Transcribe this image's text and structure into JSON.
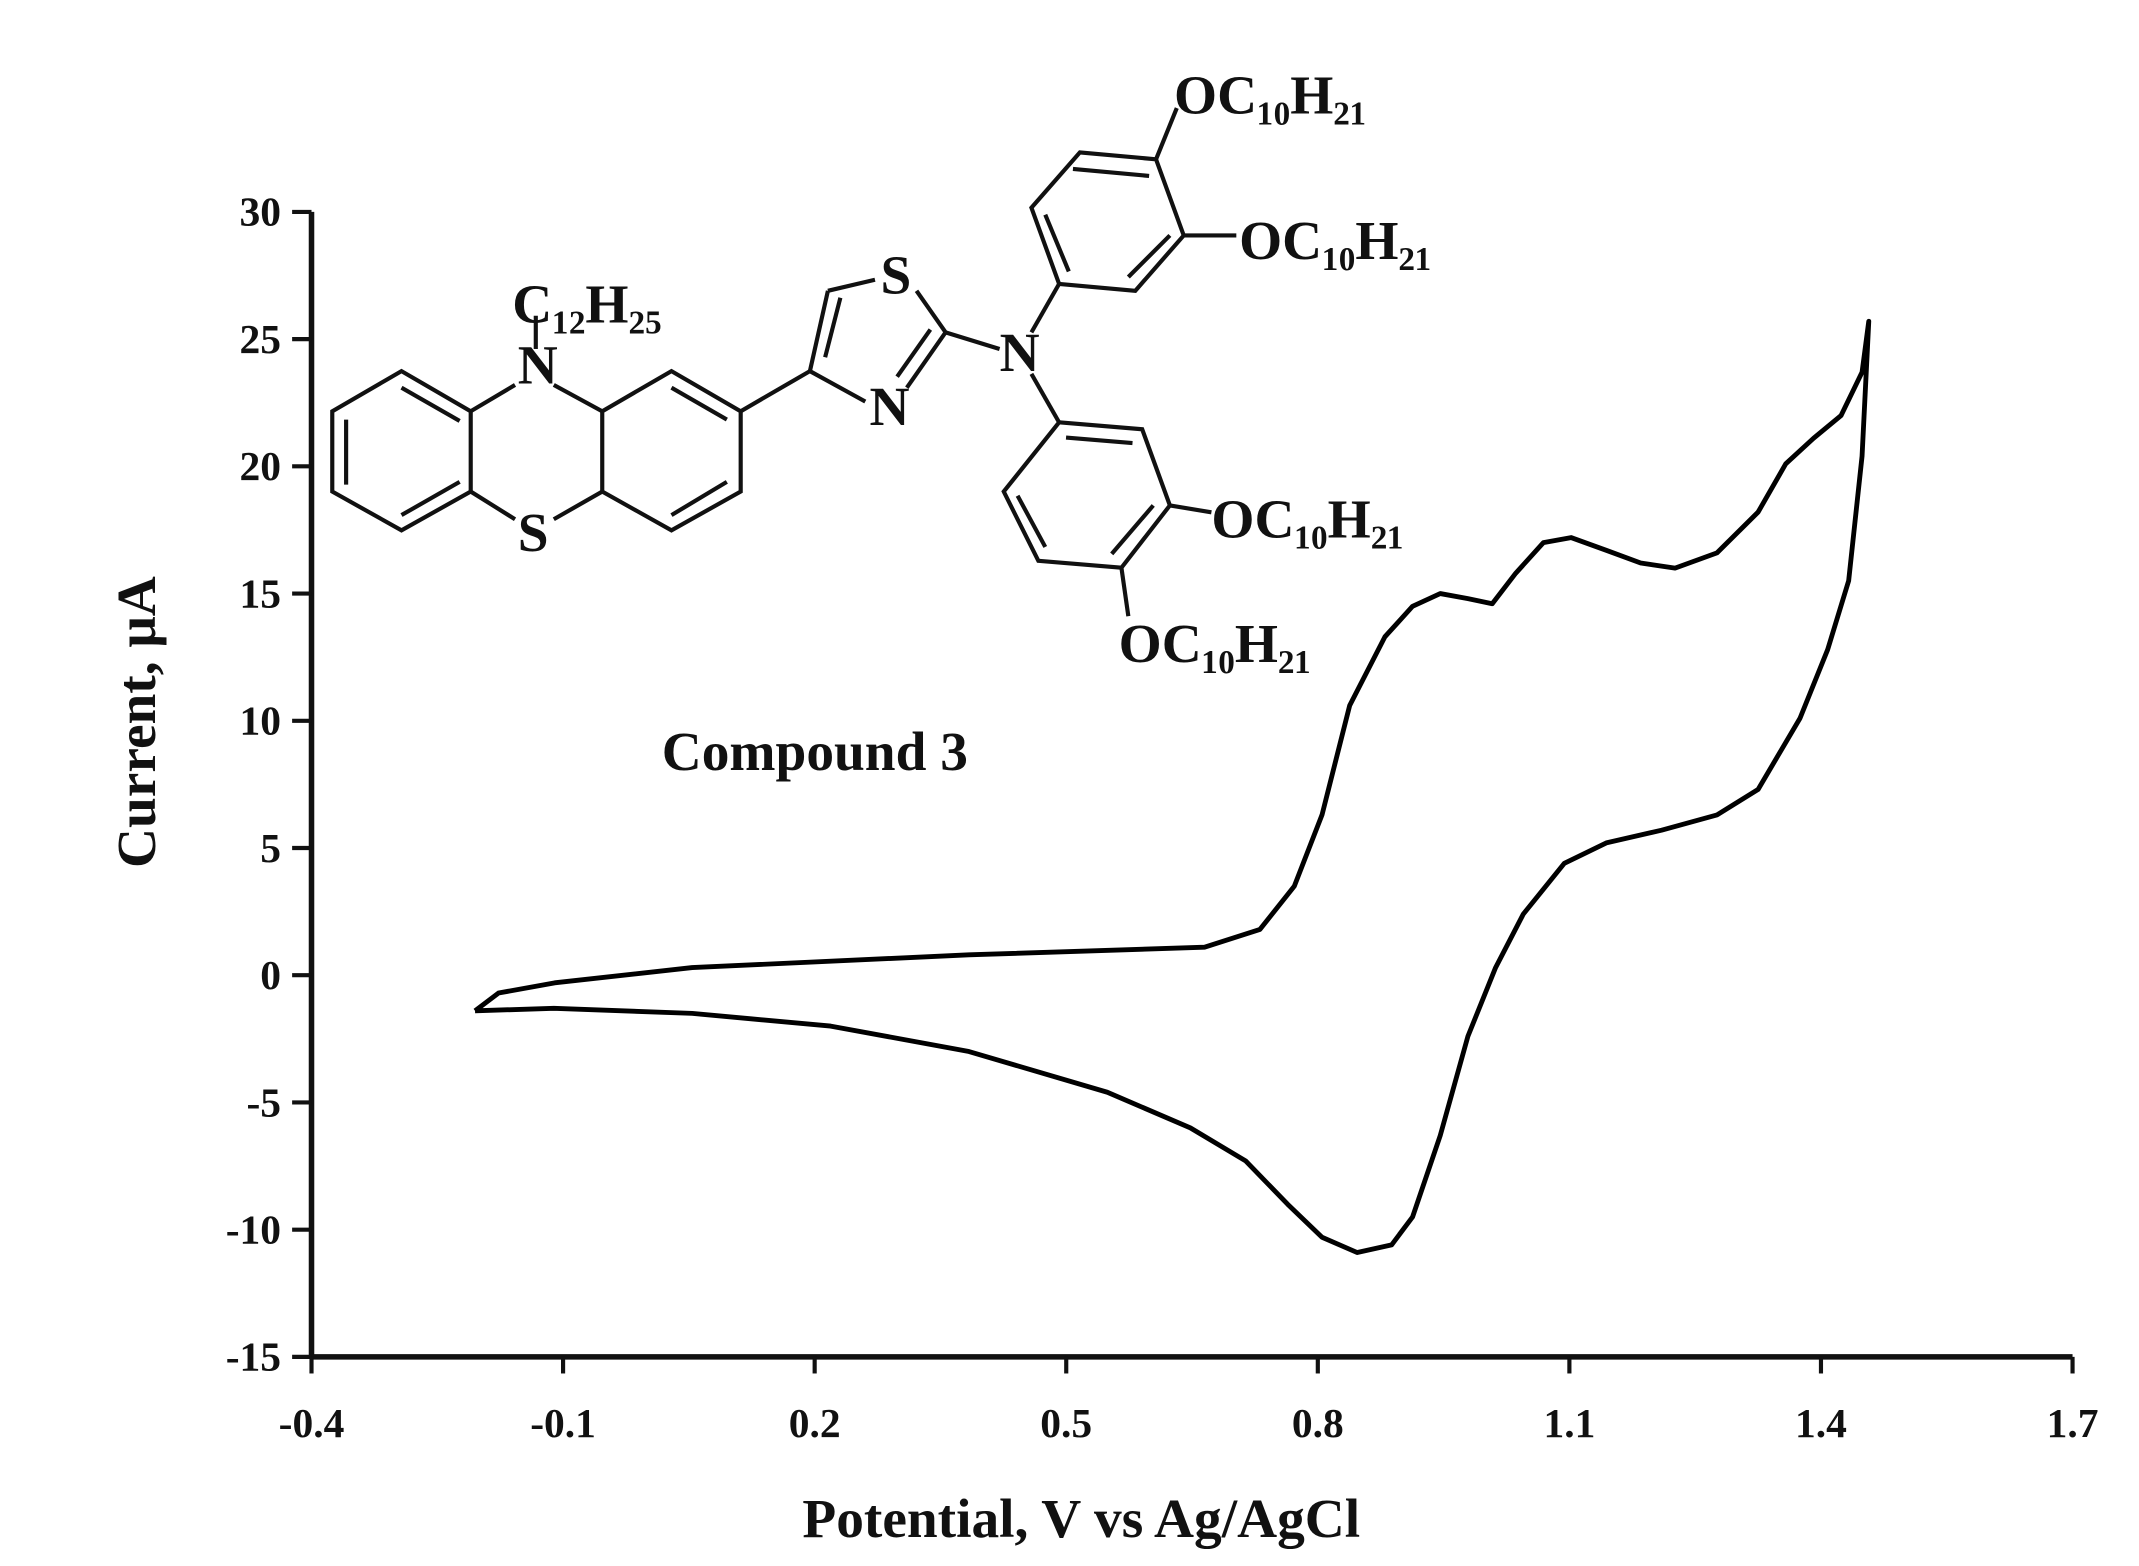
{
  "chart_data": {
    "type": "line",
    "xlabel": "Potential, V vs Ag/AgCl",
    "ylabel": "Current, μA",
    "annotation": "Compound 3",
    "structure_labels": [
      "C₁₂H₂₅",
      "N",
      "S",
      "S",
      "N",
      "N",
      "OC₁₀H₂₁",
      "OC₁₀H₂₁",
      "OC₁₀H₂₁",
      "OC₁₀H₂₁"
    ],
    "xlim": [
      -0.4,
      1.7
    ],
    "xticks": [
      -0.4,
      -0.1,
      0.2,
      0.5,
      0.8,
      1.1,
      1.4,
      1.7
    ],
    "ylim": [
      -15,
      30
    ],
    "yticks": [
      -15,
      -10,
      -5,
      0,
      5,
      10,
      15,
      20,
      25,
      30
    ],
    "grid": false,
    "series": [
      {
        "color": "#000000",
        "x": [
          -0.205,
          -0.177,
          -0.11,
          0.054,
          0.384,
          0.665,
          0.731,
          0.772,
          0.805,
          0.838,
          0.88,
          0.913,
          0.946,
          0.979,
          1.008,
          1.036,
          1.069,
          1.102,
          1.144,
          1.185,
          1.226,
          1.276,
          1.325,
          1.358,
          1.391,
          1.424,
          1.449,
          1.457,
          1.449,
          1.433,
          1.408,
          1.375,
          1.325,
          1.276,
          1.21,
          1.144,
          1.094,
          1.045,
          1.012,
          0.979,
          0.946,
          0.913,
          0.888,
          0.847,
          0.805,
          0.764,
          0.714,
          0.648,
          0.549,
          0.384,
          0.219,
          0.054,
          -0.111,
          -0.205
        ],
        "values": [
          -1.4,
          -0.7,
          -0.3,
          0.3,
          0.8,
          1.1,
          1.8,
          3.5,
          6.3,
          10.6,
          13.3,
          14.5,
          15.0,
          14.8,
          14.6,
          15.8,
          17.0,
          17.2,
          16.7,
          16.2,
          16.0,
          16.6,
          18.2,
          20.1,
          21.1,
          22.0,
          23.7,
          25.7,
          20.4,
          15.5,
          12.8,
          10.1,
          7.3,
          6.3,
          5.7,
          5.2,
          4.4,
          2.4,
          0.3,
          -2.4,
          -6.3,
          -9.5,
          -10.6,
          -10.9,
          -10.3,
          -9.0,
          -7.3,
          -6.0,
          -4.6,
          -3.0,
          -2.0,
          -1.5,
          -1.3,
          -1.4
        ]
      }
    ]
  }
}
